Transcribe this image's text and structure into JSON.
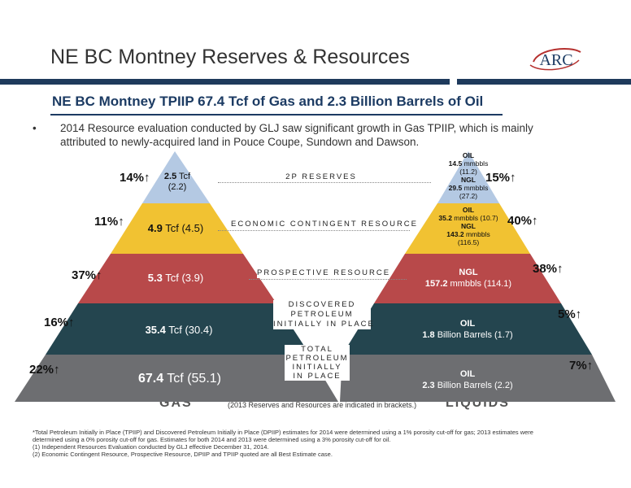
{
  "header": {
    "title": "NE BC Montney Reserves & Resources",
    "subtitle": "NE BC Montney TPIIP 67.4 Tcf of Gas and 2.3 Billion Barrels of Oil",
    "bullet_marker": "•",
    "bullet": "2014 Resource evaluation conducted by GLJ saw significant growth in Gas TPIIP, which is mainly attributed to newly-acquired land in Pouce Coupe, Sundown and Dawson.",
    "logo_text": "ARC",
    "colors": {
      "navy": "#1c3b63",
      "logo_red": "#b5302e",
      "logo_blue": "#1c3b63"
    }
  },
  "categories": [
    "2P RESERVES",
    "ECONOMIC CONTINGENT RESOURCE",
    "PROSPECTIVE RESOURCE",
    "DISCOVERED PETROLEUM INITIALLY IN PLACE",
    "TOTAL PETROLEUM INITIALLY IN PLACE"
  ],
  "category_lines": {
    "dpiip": [
      "DISCOVERED",
      "PETROLEUM",
      "INITIALLY IN PLACE"
    ],
    "tpiip": [
      "TOTAL",
      "PETROLEUM",
      "INITIALLY",
      "IN PLACE"
    ]
  },
  "tier_colors": [
    "#b4c9e3",
    "#f1c232",
    "#b8494a",
    "#24454f",
    "#6d6e71"
  ],
  "gas": {
    "label": "GAS",
    "tiers": [
      {
        "value": "2.5",
        "unit": " Tcf",
        "prior": "(2.2)",
        "change": "14%↑"
      },
      {
        "value": "4.9",
        "unit": " Tcf (4.5)",
        "change": "11%↑"
      },
      {
        "value": "5.3",
        "unit": " Tcf (3.9)",
        "change": "37%↑"
      },
      {
        "value": "35.4",
        "unit": " Tcf (30.4)",
        "change": "16%↑"
      },
      {
        "value": "67.4",
        "unit": " Tcf (55.1)",
        "change": "22%↑"
      }
    ]
  },
  "liquids": {
    "label": "LIQUIDS",
    "tier1": {
      "oil_label": "OIL",
      "oil_value": "14.5",
      "oil_unit": " mmbbls",
      "oil_prior": "(11.2)",
      "ngl_label": "NGL",
      "ngl_value": "29.5",
      "ngl_unit": " mmbbls",
      "ngl_prior": "(27.2)",
      "change": "15%↑"
    },
    "tier2": {
      "oil_label": "OIL",
      "oil_value": "35.2",
      "oil_unit": " mmbbls (10.7)",
      "ngl_label": "NGL",
      "ngl_value": "143.2",
      "ngl_unit": " mmbbls",
      "ngl_prior": "(116.5)",
      "change": "40%↑"
    },
    "tier3": {
      "label": "NGL",
      "value": "157.2",
      "unit": " mmbbls (114.1)",
      "change": "38%↑"
    },
    "tier4": {
      "label": "OIL",
      "value": "1.8",
      "unit": " Billion Barrels (1.7)",
      "change": "5%↑"
    },
    "tier5": {
      "label": "OIL",
      "value": "2.3",
      "unit": " Billion Barrels (2.2)",
      "change": "7%↑"
    }
  },
  "bracket_note": "(2013 Reserves and Resources are indicated in brackets.)",
  "footnotes": [
    "*Total Petroleum Initially in Place (TPIIP) and Discovered Petroleum Initially in Place (DPIIP) estimates for 2014 were determined using a 1% porosity cut-off for gas; 2013 estimates were",
    "determined using a 0% porosity cut-off for gas.  Estimates for both 2014 and 2013 were determined using a 3% porosity cut-off for oil.",
    "(1)    Independent Resources Evaluation conducted by GLJ effective December 31, 2014.",
    "(2)    Economic Contingent Resource, Prospective Resource, DPIIP and TPIIP quoted are all Best Estimate case."
  ]
}
